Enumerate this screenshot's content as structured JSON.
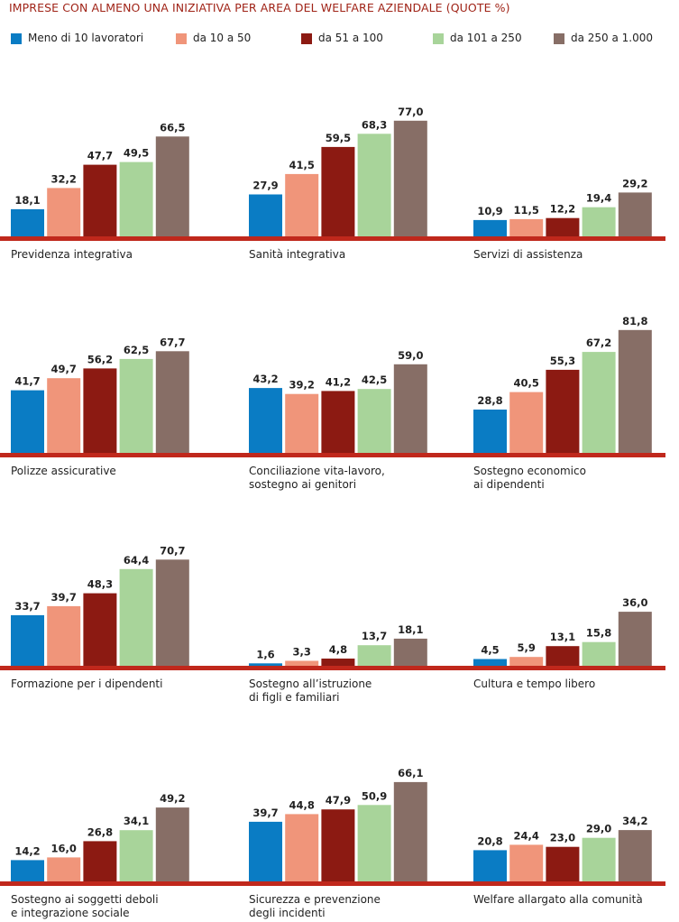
{
  "title": "IMPRESE CON ALMENO UNA INIZIATIVA PER AREA DEL WELFARE AZIENDALE (QUOTE %)",
  "colors": {
    "title": "#a02418",
    "baseline": "#c0281c",
    "series": [
      "#0a7cc4",
      "#f0957a",
      "#8c1a12",
      "#a8d49a",
      "#876e66"
    ]
  },
  "chart_data": {
    "type": "bar",
    "ylim": [
      0,
      100
    ],
    "grid": false,
    "legend_position": "top",
    "series_names": [
      "Meno di 10 lavoratori",
      "da 10 a 50",
      "da 51 a 100",
      "da 101 a 250",
      "da 250 a 1.000"
    ],
    "panels": [
      {
        "label": [
          "Previdenza integrativa"
        ],
        "values": [
          18.1,
          32.2,
          47.7,
          49.5,
          66.5
        ],
        "labels": [
          "18,1",
          "32,2",
          "47,7",
          "49,5",
          "66,5"
        ]
      },
      {
        "label": [
          "Sanità integrativa"
        ],
        "values": [
          27.9,
          41.5,
          59.5,
          68.3,
          77.0
        ],
        "labels": [
          "27,9",
          "41,5",
          "59,5",
          "68,3",
          "77,0"
        ]
      },
      {
        "label": [
          "Servizi di assistenza"
        ],
        "values": [
          10.9,
          11.5,
          12.2,
          19.4,
          29.2
        ],
        "labels": [
          "10,9",
          "11,5",
          "12,2",
          "19,4",
          "29,2"
        ]
      },
      {
        "label": [
          "Polizze assicurative"
        ],
        "values": [
          41.7,
          49.7,
          56.2,
          62.5,
          67.7
        ],
        "labels": [
          "41,7",
          "49,7",
          "56,2",
          "62,5",
          "67,7"
        ]
      },
      {
        "label": [
          "Conciliazione vita-lavoro,",
          "sostegno ai genitori"
        ],
        "values": [
          43.2,
          39.2,
          41.2,
          42.5,
          59.0
        ],
        "labels": [
          "43,2",
          "39,2",
          "41,2",
          "42,5",
          "59,0"
        ]
      },
      {
        "label": [
          "Sostegno economico",
          "ai dipendenti"
        ],
        "values": [
          28.8,
          40.5,
          55.3,
          67.2,
          81.8
        ],
        "labels": [
          "28,8",
          "40,5",
          "55,3",
          "67,2",
          "81,8"
        ]
      },
      {
        "label": [
          "Formazione per i dipendenti"
        ],
        "values": [
          33.7,
          39.7,
          48.3,
          64.4,
          70.7
        ],
        "labels": [
          "33,7",
          "39,7",
          "48,3",
          "64,4",
          "70,7"
        ]
      },
      {
        "label": [
          "Sostegno all’istruzione",
          "di figli e familiari"
        ],
        "values": [
          1.6,
          3.3,
          4.8,
          13.7,
          18.1
        ],
        "labels": [
          "1,6",
          "3,3",
          "4,8",
          "13,7",
          "18,1"
        ]
      },
      {
        "label": [
          "Cultura e tempo libero"
        ],
        "values": [
          4.5,
          5.9,
          13.1,
          15.8,
          36.0
        ],
        "labels": [
          "4,5",
          "5,9",
          "13,1",
          "15,8",
          "36,0"
        ]
      },
      {
        "label": [
          "Sostegno ai soggetti deboli",
          "e integrazione sociale"
        ],
        "values": [
          14.2,
          16.0,
          26.8,
          34.1,
          49.2
        ],
        "labels": [
          "14,2",
          "16,0",
          "26,8",
          "34,1",
          "49,2"
        ]
      },
      {
        "label": [
          "Sicurezza e prevenzione",
          "degli incidenti"
        ],
        "values": [
          39.7,
          44.8,
          47.9,
          50.9,
          66.1
        ],
        "labels": [
          "39,7",
          "44,8",
          "47,9",
          "50,9",
          "66,1"
        ]
      },
      {
        "label": [
          "Welfare allargato alla comunità"
        ],
        "values": [
          20.8,
          24.4,
          23.0,
          29.0,
          34.2
        ],
        "labels": [
          "20,8",
          "24,4",
          "23,0",
          "29,0",
          "34,2"
        ]
      }
    ]
  }
}
